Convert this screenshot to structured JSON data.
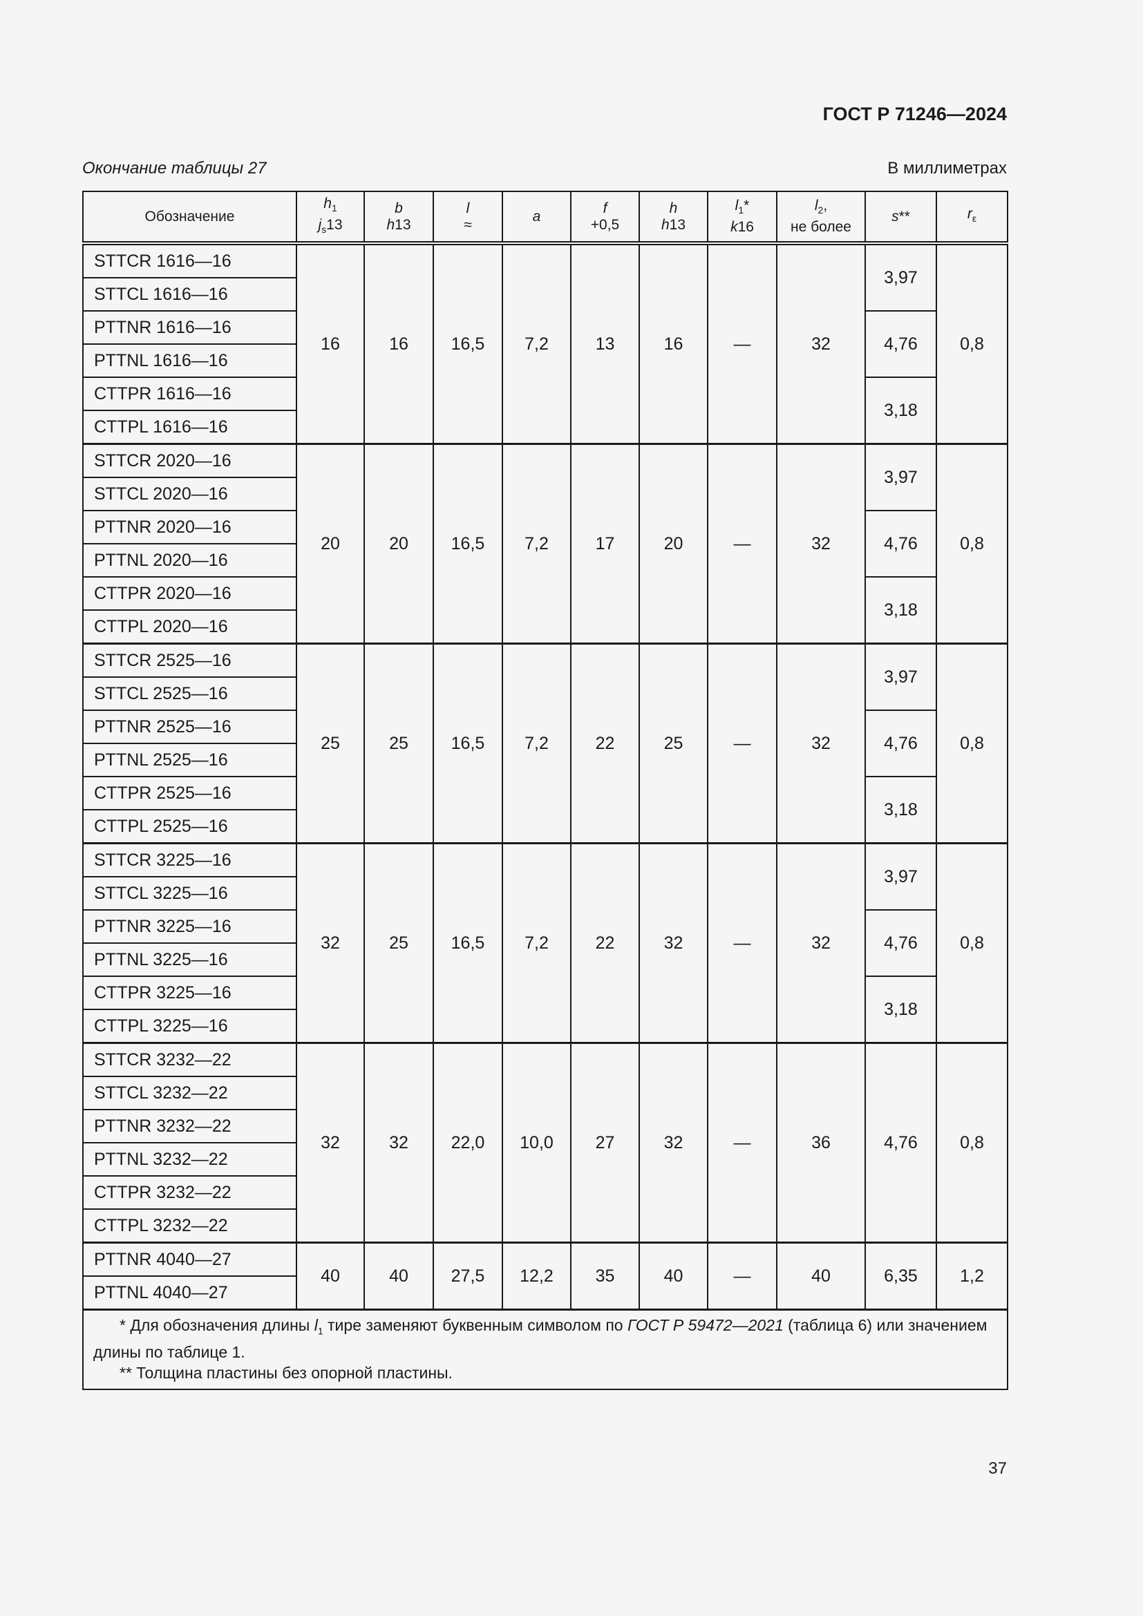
{
  "header": {
    "standard": "ГОСТ Р 71246—2024",
    "caption": "Окончание таблицы 27",
    "units": "В миллиметрах"
  },
  "columns": [
    {
      "top": "Обозначение",
      "bottom": ""
    },
    {
      "top": "h1",
      "bottom": "js13"
    },
    {
      "top": "b",
      "bottom": "h13"
    },
    {
      "top": "l",
      "bottom": "≈"
    },
    {
      "top": "a",
      "bottom": ""
    },
    {
      "top": "f",
      "bottom": "+0,5"
    },
    {
      "top": "h",
      "bottom": "h13"
    },
    {
      "top": "l1*",
      "bottom": "k16"
    },
    {
      "top": "l2,",
      "bottom": "не более"
    },
    {
      "top": "s**",
      "bottom": ""
    },
    {
      "top": "rε",
      "bottom": ""
    }
  ],
  "groups": [
    {
      "designations": [
        "STTCR 1616—16",
        "STTCL 1616—16",
        "PTTNR 1616—16",
        "PTTNL 1616—16",
        "CTTPR 1616—16",
        "CTTPL 1616—16"
      ],
      "h1": "16",
      "b": "16",
      "l": "16,5",
      "a": "7,2",
      "f": "13",
      "h": "16",
      "l1": "—",
      "l2": "32",
      "s": [
        "3,97",
        "4,76",
        "3,18"
      ],
      "r": "0,8"
    },
    {
      "designations": [
        "STTCR 2020—16",
        "STTCL 2020—16",
        "PTTNR 2020—16",
        "PTTNL 2020—16",
        "CTTPR 2020—16",
        "CTTPL 2020—16"
      ],
      "h1": "20",
      "b": "20",
      "l": "16,5",
      "a": "7,2",
      "f": "17",
      "h": "20",
      "l1": "—",
      "l2": "32",
      "s": [
        "3,97",
        "4,76",
        "3,18"
      ],
      "r": "0,8"
    },
    {
      "designations": [
        "STTCR 2525—16",
        "STTCL 2525—16",
        "PTTNR 2525—16",
        "PTTNL 2525—16",
        "CTTPR 2525—16",
        "CTTPL 2525—16"
      ],
      "h1": "25",
      "b": "25",
      "l": "16,5",
      "a": "7,2",
      "f": "22",
      "h": "25",
      "l1": "—",
      "l2": "32",
      "s": [
        "3,97",
        "4,76",
        "3,18"
      ],
      "r": "0,8"
    },
    {
      "designations": [
        "STTCR 3225—16",
        "STTCL 3225—16",
        "PTTNR 3225—16",
        "PTTNL 3225—16",
        "CTTPR 3225—16",
        "CTTPL 3225—16"
      ],
      "h1": "32",
      "b": "25",
      "l": "16,5",
      "a": "7,2",
      "f": "22",
      "h": "32",
      "l1": "—",
      "l2": "32",
      "s": [
        "3,97",
        "4,76",
        "3,18"
      ],
      "r": "0,8"
    },
    {
      "designations": [
        "STTCR 3232—22",
        "STTCL 3232—22",
        "PTTNR 3232—22",
        "PTTNL 3232—22",
        "CTTPR 3232—22",
        "CTTPL 3232—22"
      ],
      "h1": "32",
      "b": "32",
      "l": "22,0",
      "a": "10,0",
      "f": "27",
      "h": "32",
      "l1": "—",
      "l2": "36",
      "s": [
        "4,76"
      ],
      "r": "0,8"
    },
    {
      "designations": [
        "PTTNR 4040—27",
        "PTTNL 4040—27"
      ],
      "h1": "40",
      "b": "40",
      "l": "27,5",
      "a": "12,2",
      "f": "35",
      "h": "40",
      "l1": "—",
      "l2": "40",
      "s": [
        "6,35"
      ],
      "r": "1,2"
    }
  ],
  "footnotes": {
    "note1_a": "* Для обозначения длины ",
    "note1_sym": "l",
    "note1_sub": "1",
    "note1_b": " тире заменяют буквенным символом по ",
    "note1_ref": "ГОСТ Р 59472—2021",
    "note1_c": " (таблица 6) или значением длины по таблице 1.",
    "note2": "** Толщина пластины без опорной пластины."
  },
  "page_number": "37"
}
